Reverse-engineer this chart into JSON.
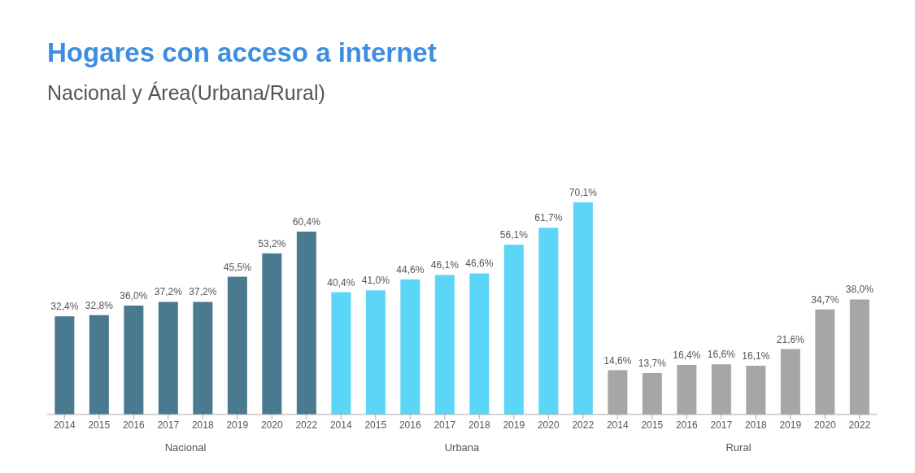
{
  "chart_data": {
    "type": "bar",
    "title": "Hogares con acceso a internet",
    "subtitle": "Nacional  y Área(Urbana/Rural)",
    "categories": [
      "2014",
      "2015",
      "2016",
      "2017",
      "2018",
      "2019",
      "2020",
      "2022",
      "2014",
      "2015",
      "2016",
      "2017",
      "2018",
      "2019",
      "2020",
      "2022",
      "2014",
      "2015",
      "2016",
      "2017",
      "2018",
      "2019",
      "2020",
      "2022"
    ],
    "series": [
      {
        "name": "Nacional",
        "color": "#4a7a8f",
        "values": [
          32.4,
          32.8,
          36.0,
          37.2,
          37.2,
          45.5,
          53.2,
          60.4,
          null,
          null,
          null,
          null,
          null,
          null,
          null,
          null,
          null,
          null,
          null,
          null,
          null,
          null,
          null,
          null
        ],
        "value_labels": [
          "32,4%",
          "32,8%",
          "36,0%",
          "37,2%",
          "37,2%",
          "45,5%",
          "53,2%",
          "60,4%",
          null,
          null,
          null,
          null,
          null,
          null,
          null,
          null,
          null,
          null,
          null,
          null,
          null,
          null,
          null,
          null
        ]
      },
      {
        "name": "Urbana",
        "color": "#5bd6f7",
        "values": [
          null,
          null,
          null,
          null,
          null,
          null,
          null,
          null,
          40.4,
          41.0,
          44.6,
          46.1,
          46.6,
          56.1,
          61.7,
          70.1,
          null,
          null,
          null,
          null,
          null,
          null,
          null,
          null
        ],
        "value_labels": [
          null,
          null,
          null,
          null,
          null,
          null,
          null,
          null,
          "40,4%",
          "41,0%",
          "44,6%",
          "46,1%",
          "46,6%",
          "56,1%",
          "61,7%",
          "70,1%",
          null,
          null,
          null,
          null,
          null,
          null,
          null,
          null
        ]
      },
      {
        "name": "Rural",
        "color": "#a6a6a6",
        "values": [
          null,
          null,
          null,
          null,
          null,
          null,
          null,
          null,
          null,
          null,
          null,
          null,
          null,
          null,
          null,
          null,
          14.6,
          13.7,
          16.4,
          16.6,
          16.1,
          21.6,
          34.7,
          38.0
        ],
        "value_labels": [
          null,
          null,
          null,
          null,
          null,
          null,
          null,
          null,
          null,
          null,
          null,
          null,
          null,
          null,
          null,
          null,
          "14,6%",
          "13,7%",
          "16,4%",
          "16,6%",
          "16,1%",
          "21,6%",
          "34,7%",
          "38,0%"
        ]
      }
    ]
  }
}
